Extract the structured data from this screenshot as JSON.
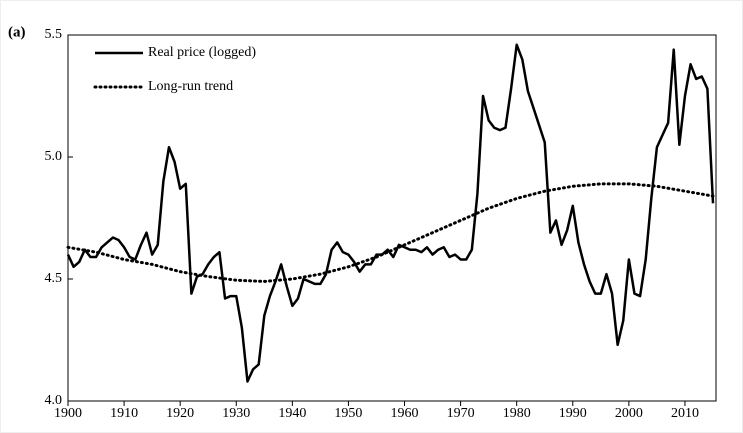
{
  "chart_data": {
    "type": "line",
    "panel_label": "(a)",
    "series": [
      {
        "name": "Real price (logged)",
        "color": "#000000",
        "style": "solid",
        "x": [
          1900,
          1901,
          1902,
          1903,
          1904,
          1905,
          1906,
          1907,
          1908,
          1909,
          1910,
          1911,
          1912,
          1913,
          1914,
          1915,
          1916,
          1917,
          1918,
          1919,
          1920,
          1921,
          1922,
          1923,
          1924,
          1925,
          1926,
          1927,
          1928,
          1929,
          1930,
          1931,
          1932,
          1933,
          1934,
          1935,
          1936,
          1937,
          1938,
          1939,
          1940,
          1941,
          1942,
          1943,
          1944,
          1945,
          1946,
          1947,
          1948,
          1949,
          1950,
          1951,
          1952,
          1953,
          1954,
          1955,
          1956,
          1957,
          1958,
          1959,
          1960,
          1961,
          1962,
          1963,
          1964,
          1965,
          1966,
          1967,
          1968,
          1969,
          1970,
          1971,
          1972,
          1973,
          1974,
          1975,
          1976,
          1977,
          1978,
          1979,
          1980,
          1981,
          1982,
          1983,
          1984,
          1985,
          1986,
          1987,
          1988,
          1989,
          1990,
          1991,
          1992,
          1993,
          1994,
          1995,
          1996,
          1997,
          1998,
          1999,
          2000,
          2001,
          2002,
          2003,
          2004,
          2005,
          2006,
          2007,
          2008,
          2009,
          2010,
          2011,
          2012,
          2013,
          2014,
          2015
        ],
        "values": [
          4.6,
          4.55,
          4.57,
          4.62,
          4.59,
          4.59,
          4.63,
          4.65,
          4.67,
          4.66,
          4.63,
          4.59,
          4.58,
          4.64,
          4.69,
          4.6,
          4.64,
          4.9,
          5.04,
          4.98,
          4.87,
          4.89,
          4.44,
          4.51,
          4.52,
          4.56,
          4.59,
          4.61,
          4.42,
          4.43,
          4.43,
          4.3,
          4.08,
          4.13,
          4.15,
          4.35,
          4.43,
          4.49,
          4.56,
          4.47,
          4.39,
          4.42,
          4.5,
          4.49,
          4.48,
          4.48,
          4.52,
          4.62,
          4.65,
          4.61,
          4.6,
          4.57,
          4.53,
          4.56,
          4.56,
          4.6,
          4.6,
          4.62,
          4.59,
          4.64,
          4.63,
          4.62,
          4.62,
          4.61,
          4.63,
          4.6,
          4.62,
          4.63,
          4.59,
          4.6,
          4.58,
          4.58,
          4.62,
          4.85,
          5.25,
          5.15,
          5.12,
          5.11,
          5.12,
          5.28,
          5.46,
          5.4,
          5.27,
          5.2,
          5.13,
          5.06,
          4.69,
          4.74,
          4.64,
          4.7,
          4.8,
          4.65,
          4.56,
          4.49,
          4.44,
          4.44,
          4.52,
          4.44,
          4.23,
          4.33,
          4.58,
          4.44,
          4.43,
          4.58,
          4.83,
          5.04,
          5.09,
          5.14,
          5.44,
          5.05,
          5.25,
          5.38,
          5.32,
          5.33,
          5.28,
          4.81
        ]
      },
      {
        "name": "Long-run trend",
        "color": "#000000",
        "style": "dotted",
        "x": [
          1900,
          1905,
          1910,
          1915,
          1920,
          1925,
          1930,
          1935,
          1940,
          1945,
          1950,
          1955,
          1960,
          1965,
          1970,
          1975,
          1980,
          1985,
          1990,
          1995,
          2000,
          2005,
          2010,
          2015
        ],
        "values": [
          4.63,
          4.61,
          4.58,
          4.56,
          4.53,
          4.51,
          4.495,
          4.49,
          4.5,
          4.52,
          4.55,
          4.59,
          4.64,
          4.69,
          4.74,
          4.79,
          4.83,
          4.86,
          4.88,
          4.89,
          4.89,
          4.88,
          4.86,
          4.84
        ]
      }
    ],
    "xlim": [
      1900,
      2015
    ],
    "xticks": [
      1900,
      1910,
      1920,
      1930,
      1940,
      1950,
      1960,
      1970,
      1980,
      1990,
      2000,
      2010
    ],
    "ylim": [
      4.0,
      5.5
    ],
    "yticks": [
      {
        "value": 4.0,
        "label": "4.0"
      },
      4.5,
      {
        "value": 5.0,
        "label": "5.0"
      },
      5.5
    ],
    "legend": "upper left",
    "grid": false
  }
}
